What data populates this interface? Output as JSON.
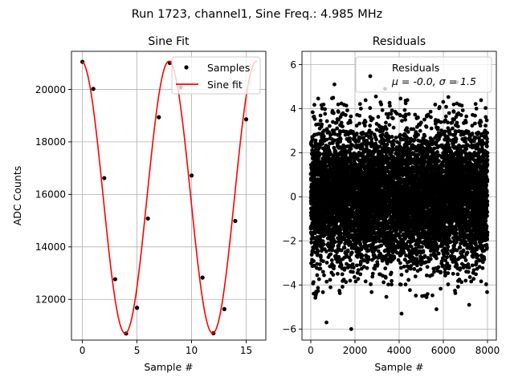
{
  "figure": {
    "suptitle": "Run 1723, channel1, Sine Freq.: 4.985 MHz"
  },
  "chart_data": [
    {
      "type": "scatter",
      "title": "Sine Fit",
      "xlabel": "Sample #",
      "ylabel": "ADC Counts",
      "xlim": [
        -1,
        16.8
      ],
      "ylim": [
        10450,
        21450
      ],
      "xticks": [
        0,
        5,
        10,
        15
      ],
      "yticks": [
        12000,
        14000,
        16000,
        18000,
        20000
      ],
      "ytick_labels": [
        "12000",
        "14000",
        "16000",
        "18000",
        "20000"
      ],
      "grid": true,
      "legend": {
        "position": "top-right",
        "entries": [
          {
            "label": "Samples",
            "marker": "dot",
            "color": "#000000"
          },
          {
            "label": "Sine fit",
            "marker": "line",
            "color": "#ff0000"
          }
        ]
      },
      "series": [
        {
          "name": "Samples",
          "kind": "scatter",
          "color": "#000000",
          "x": [
            0,
            1,
            2,
            3,
            4,
            5,
            6,
            7,
            8,
            9,
            10,
            11,
            12,
            13,
            14,
            15
          ],
          "y": [
            21050,
            20020,
            16620,
            12770,
            10700,
            11680,
            15080,
            18940,
            21010,
            20080,
            16720,
            12830,
            10710,
            11630,
            14990,
            18860
          ]
        },
        {
          "name": "Sine fit",
          "kind": "line",
          "color": "#ff0000",
          "x_range": [
            0,
            16
          ],
          "amplitude": 5180,
          "offset": 15890,
          "samples_per_period": 8.015,
          "phase_rad": 1.645
        }
      ]
    },
    {
      "type": "scatter",
      "title": "Residuals",
      "xlabel": "Sample #",
      "ylabel": "",
      "xlim": [
        -400,
        8400
      ],
      "ylim": [
        -6.5,
        6.6
      ],
      "xticks": [
        0,
        2000,
        4000,
        6000,
        8000
      ],
      "yticks": [
        -6,
        -4,
        -2,
        0,
        2,
        4,
        6
      ],
      "ytick_labels": [
        "−6",
        "−4",
        "−2",
        "0",
        "2",
        "4",
        "6"
      ],
      "grid": true,
      "legend": {
        "position": "top-right",
        "entries": [
          {
            "label": "Residuals",
            "marker": "dot",
            "color": "#000000"
          },
          {
            "label": "μ = -0.0, σ = 1.5",
            "marker": "none"
          }
        ]
      },
      "series": [
        {
          "name": "Residuals",
          "kind": "scatter",
          "color": "#000000",
          "n_points": 8000,
          "mean": 0.0,
          "std": 1.5,
          "x_range": [
            0,
            8000
          ],
          "extremes": [
            {
              "x": 1070,
              "y": 5.1
            },
            {
              "x": 1830,
              "y": -6.0
            },
            {
              "x": 710,
              "y": -5.7
            },
            {
              "x": 4110,
              "y": -5.3
            },
            {
              "x": 5690,
              "y": -5.1
            },
            {
              "x": 6600,
              "y": 5.2
            },
            {
              "x": 3360,
              "y": 4.9
            },
            {
              "x": 7170,
              "y": -4.9
            }
          ]
        }
      ]
    }
  ]
}
